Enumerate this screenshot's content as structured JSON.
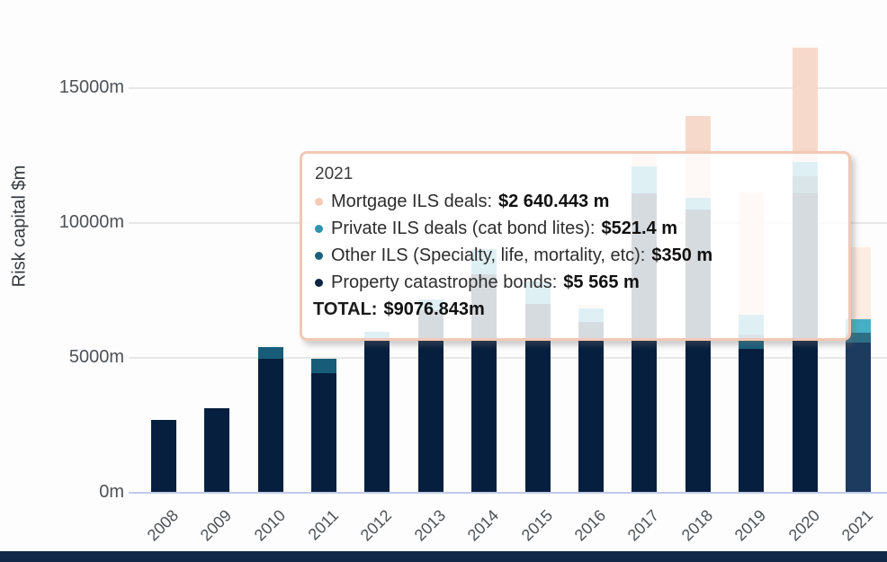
{
  "chart_data": {
    "type": "bar",
    "stacked": true,
    "ylabel": "Risk capital $m",
    "xlabel": "",
    "ylim": [
      0,
      18250
    ],
    "grid": true,
    "yticks": [
      {
        "label": "0m",
        "value": 0
      },
      {
        "label": "5000m",
        "value": 5000
      },
      {
        "label": "10000m",
        "value": 10000
      },
      {
        "label": "15000m",
        "value": 15000
      }
    ],
    "categories": [
      "2008",
      "2009",
      "2010",
      "2011",
      "2012",
      "2013",
      "2014",
      "2015",
      "2016",
      "2017",
      "2018",
      "2019",
      "2020",
      "2021"
    ],
    "highlighted_category": "2021",
    "series": [
      {
        "name": "Property catastrophe bonds",
        "color": "#061f3e",
        "highlight_color": "#1d3a5f",
        "values": [
          2690,
          3130,
          4950,
          4420,
          5680,
          6770,
          8090,
          6990,
          6320,
          11100,
          10500,
          5330,
          11100,
          5565
        ]
      },
      {
        "name": "Other ILS (Specialty, life, mortality, etc)",
        "color": "#175d79",
        "highlight_color": "#2d6e88",
        "values": [
          0,
          0,
          460,
          550,
          0,
          0,
          0,
          0,
          0,
          0,
          0,
          530,
          630,
          350
        ]
      },
      {
        "name": "Private ILS deals (cat bond lites)",
        "color": "#3b9fb9",
        "highlight_color": "#46afc7",
        "values": [
          0,
          0,
          0,
          0,
          280,
          390,
          940,
          830,
          500,
          1000,
          430,
          730,
          530,
          521.4
        ]
      },
      {
        "name": "Mortgage ILS deals",
        "color": "#f7d9cb",
        "highlight_color": "#fdece2",
        "values": [
          0,
          0,
          0,
          0,
          0,
          0,
          0,
          150,
          140,
          470,
          3030,
          4520,
          4230,
          2640.443
        ]
      }
    ],
    "totals": [
      2690,
      3130,
      5410,
      4970,
      5960,
      7160,
      9030,
      7970,
      6960,
      12570,
      13960,
      11110,
      16490,
      9076.843
    ]
  },
  "tooltip": {
    "title": "2021",
    "rows": [
      {
        "label": "Mortgage ILS deals:",
        "value": "$2 640.443 m",
        "dot_color": "#f4cbb6"
      },
      {
        "label": "Private ILS deals (cat bond lites):",
        "value": "$521.4 m",
        "dot_color": "#2e93ad"
      },
      {
        "label": "Other ILS (Specialty, life, mortality, etc):",
        "value": "$350 m",
        "dot_color": "#20607c"
      },
      {
        "label": "Property catastrophe bonds:",
        "value": "$5 565 m",
        "dot_color": "#0c2440"
      }
    ],
    "total_label": "TOTAL:",
    "total_value": "$9076.843m"
  },
  "colors": {
    "gridline": "#e7e7e7",
    "axis_baseline": "#bfcbe6",
    "tooltip_border": "#f2c8b5",
    "bottom_strip": "#13294a"
  }
}
